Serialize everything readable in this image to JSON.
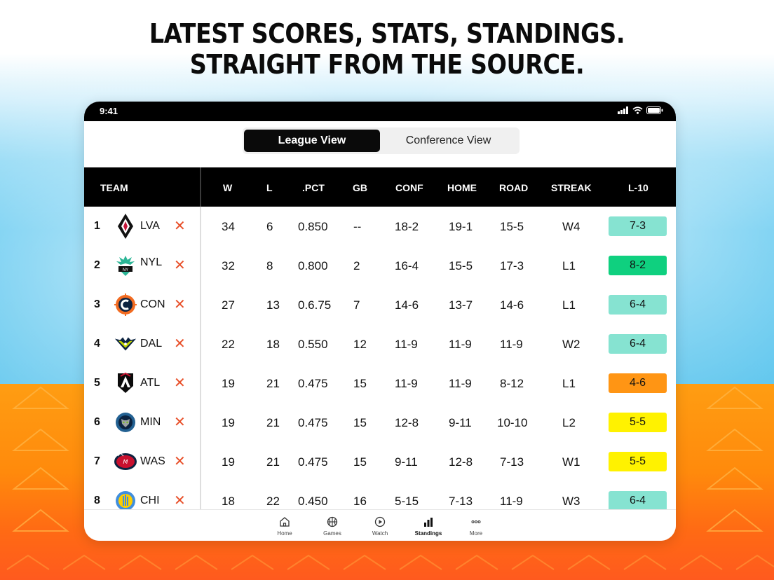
{
  "headline": {
    "line1": "LATEST SCORES, STATS, STANDINGS.",
    "line2": "STRAIGHT FROM THE SOURCE."
  },
  "status_bar": {
    "time": "9:41"
  },
  "view_toggle": {
    "league": "League View",
    "conference": "Conference View",
    "selected": "League View"
  },
  "table": {
    "headers": {
      "team": "TEAM",
      "w": "W",
      "l": "L",
      "pct": ".PCT",
      "gb": "GB",
      "conf": "CONF",
      "home": "HOME",
      "road": "ROAD",
      "streak": "STREAK",
      "l10": "L-10"
    },
    "rows": [
      {
        "rank": "1",
        "team": "LVA",
        "logo": "aces-logo",
        "w": "34",
        "l": "6",
        "pct": "0.850",
        "gb": "--",
        "conf": "18-2",
        "home": "19-1",
        "road": "15-5",
        "streak": "W4",
        "l10": "7-3",
        "l10_color": "#86e3d1"
      },
      {
        "rank": "2",
        "team": "NYL",
        "logo": "liberty-logo",
        "w": "32",
        "l": "8",
        "pct": "0.800",
        "gb": "2",
        "conf": "16-4",
        "home": "15-5",
        "road": "17-3",
        "streak": "L1",
        "l10": "8-2",
        "l10_color": "#0fd07f"
      },
      {
        "rank": "3",
        "team": "CON",
        "logo": "sun-logo",
        "w": "27",
        "l": "13",
        "pct": "0.6.75",
        "gb": "7",
        "conf": "14-6",
        "home": "13-7",
        "road": "14-6",
        "streak": "L1",
        "l10": "6-4",
        "l10_color": "#86e3d1"
      },
      {
        "rank": "4",
        "team": "DAL",
        "logo": "wings-logo",
        "w": "22",
        "l": "18",
        "pct": "0.550",
        "gb": "12",
        "conf": "11-9",
        "home": "11-9",
        "road": "11-9",
        "streak": "W2",
        "l10": "6-4",
        "l10_color": "#86e3d1"
      },
      {
        "rank": "5",
        "team": "ATL",
        "logo": "dream-logo",
        "w": "19",
        "l": "21",
        "pct": "0.475",
        "gb": "15",
        "conf": "11-9",
        "home": "11-9",
        "road": "8-12",
        "streak": "L1",
        "l10": "4-6",
        "l10_color": "#ff9514"
      },
      {
        "rank": "6",
        "team": "MIN",
        "logo": "lynx-logo",
        "w": "19",
        "l": "21",
        "pct": "0.475",
        "gb": "15",
        "conf": "12-8",
        "home": "9-11",
        "road": "10-10",
        "streak": "L2",
        "l10": "5-5",
        "l10_color": "#fff200"
      },
      {
        "rank": "7",
        "team": "WAS",
        "logo": "mystics-logo",
        "w": "19",
        "l": "21",
        "pct": "0.475",
        "gb": "15",
        "conf": "9-11",
        "home": "12-8",
        "road": "7-13",
        "streak": "W1",
        "l10": "5-5",
        "l10_color": "#fff200"
      },
      {
        "rank": "8",
        "team": "CHI",
        "logo": "sky-logo",
        "w": "18",
        "l": "22",
        "pct": "0.450",
        "gb": "16",
        "conf": "5-15",
        "home": "7-13",
        "road": "11-9",
        "streak": "W3",
        "l10": "6-4",
        "l10_color": "#86e3d1"
      }
    ]
  },
  "tabbar": {
    "home": "Home",
    "games": "Games",
    "watch": "Watch",
    "standings": "Standings",
    "more": "More"
  }
}
